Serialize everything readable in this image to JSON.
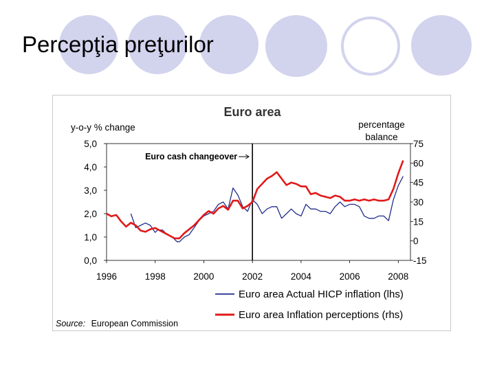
{
  "slide": {
    "title": "Percepţia preţurilor"
  },
  "source": {
    "label": "Source:",
    "text": "European Commission"
  },
  "colors": {
    "hicp": "#1f2d8a",
    "perception": "#e0191a",
    "circle_fill": "#d2d3ed",
    "circle_ring": "#d2d3ed"
  },
  "chart_data": {
    "type": "line",
    "title": "Euro area",
    "ylabel_left": "y-o-y % change",
    "ylabel_right": [
      "percentage",
      "balance"
    ],
    "annotation": {
      "text": "Euro cash changeover",
      "x": 2002.0
    },
    "x_ticks": [
      "1996",
      "1998",
      "2000",
      "2002",
      "2004",
      "2006",
      "2008"
    ],
    "y_left_ticks": [
      "0,0",
      "1,0",
      "2,0",
      "3,0",
      "4,0",
      "5,0"
    ],
    "y_right_ticks": [
      "-15",
      "0",
      "15",
      "30",
      "45",
      "60",
      "75"
    ],
    "xlim": [
      1996,
      2008.5
    ],
    "ylim_left": [
      0,
      5
    ],
    "ylim_right": [
      -15,
      75
    ],
    "series": [
      {
        "name": "Euro area Actual HICP inflation (lhs)",
        "axis": "left",
        "x": [
          1997.0,
          1997.2,
          1997.4,
          1997.6,
          1997.8,
          1998.0,
          1998.1,
          1998.3,
          1998.5,
          1998.7,
          1998.9,
          1999.0,
          1999.2,
          1999.4,
          1999.6,
          1999.8,
          2000.0,
          2000.2,
          2000.4,
          2000.6,
          2000.8,
          2001.0,
          2001.2,
          2001.4,
          2001.6,
          2001.8,
          2002.0,
          2002.2,
          2002.4,
          2002.6,
          2002.8,
          2003.0,
          2003.2,
          2003.4,
          2003.6,
          2003.8,
          2004.0,
          2004.2,
          2004.4,
          2004.6,
          2004.8,
          2005.0,
          2005.2,
          2005.4,
          2005.6,
          2005.8,
          2006.0,
          2006.2,
          2006.4,
          2006.6,
          2006.8,
          2007.0,
          2007.2,
          2007.4,
          2007.6,
          2007.8,
          2008.0,
          2008.2
        ],
        "values": [
          2.0,
          1.4,
          1.5,
          1.6,
          1.5,
          1.2,
          1.3,
          1.3,
          1.1,
          1.0,
          0.8,
          0.8,
          1.0,
          1.1,
          1.4,
          1.7,
          1.9,
          2.0,
          2.1,
          2.4,
          2.5,
          2.2,
          3.1,
          2.8,
          2.3,
          2.1,
          2.6,
          2.4,
          2.0,
          2.2,
          2.3,
          2.3,
          1.8,
          2.0,
          2.2,
          2.0,
          1.9,
          2.4,
          2.2,
          2.2,
          2.1,
          2.1,
          2.0,
          2.3,
          2.5,
          2.3,
          2.4,
          2.4,
          2.3,
          1.9,
          1.8,
          1.8,
          1.9,
          1.9,
          1.7,
          2.6,
          3.2,
          3.6
        ]
      },
      {
        "name": "Euro area Inflation perceptions (rhs)",
        "axis": "right",
        "x": [
          1996.0,
          1996.2,
          1996.4,
          1996.6,
          1996.8,
          1997.0,
          1997.2,
          1997.4,
          1997.6,
          1997.8,
          1998.0,
          1998.2,
          1998.4,
          1998.6,
          1998.8,
          1999.0,
          1999.2,
          1999.4,
          1999.6,
          1999.8,
          2000.0,
          2000.2,
          2000.4,
          2000.6,
          2000.8,
          2001.0,
          2001.2,
          2001.4,
          2001.6,
          2001.8,
          2002.0,
          2002.2,
          2002.4,
          2002.6,
          2002.8,
          2003.0,
          2003.2,
          2003.4,
          2003.6,
          2003.8,
          2004.0,
          2004.2,
          2004.4,
          2004.6,
          2004.8,
          2005.0,
          2005.2,
          2005.4,
          2005.6,
          2005.8,
          2006.0,
          2006.2,
          2006.4,
          2006.6,
          2006.8,
          2007.0,
          2007.2,
          2007.4,
          2007.6,
          2007.8,
          2008.0,
          2008.2
        ],
        "values": [
          21,
          19,
          20,
          15,
          11,
          14,
          12,
          8,
          7,
          9,
          10,
          8,
          6,
          4,
          2,
          2,
          6,
          9,
          12,
          16,
          20,
          23,
          21,
          25,
          27,
          24,
          31,
          31,
          25,
          27,
          30,
          40,
          44,
          48,
          50,
          53,
          48,
          43,
          45,
          44,
          42,
          42,
          36,
          37,
          35,
          34,
          33,
          35,
          34,
          31,
          31,
          32,
          31,
          32,
          31,
          32,
          31,
          31,
          32,
          40,
          52,
          62
        ]
      }
    ]
  }
}
